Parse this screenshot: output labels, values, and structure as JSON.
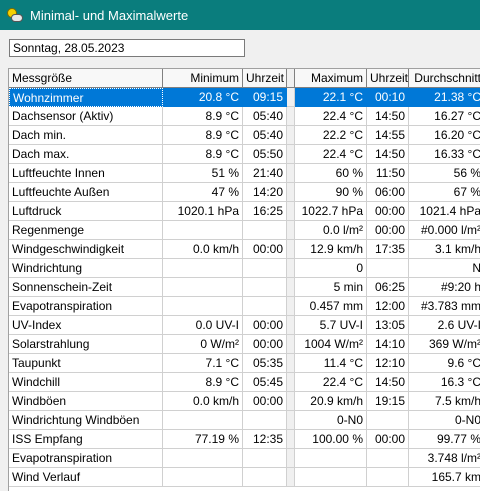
{
  "window": {
    "title": "Minimal- und Maximalwerte"
  },
  "date": "Sonntag, 28.05.2023",
  "table": {
    "headers": [
      "Messgröße",
      "Minimum",
      "Uhrzeit",
      "Maximum",
      "Uhrzeit",
      "Durchschnitt"
    ],
    "rows": [
      [
        "Wohnzimmer",
        "20.8 °C",
        "09:15",
        "22.1 °C",
        "00:10",
        "21.38 °C"
      ],
      [
        "Dachsensor (Aktiv)",
        "8.9 °C",
        "05:40",
        "22.4 °C",
        "14:50",
        "16.27 °C"
      ],
      [
        "Dach min.",
        "8.9 °C",
        "05:40",
        "22.2 °C",
        "14:55",
        "16.20 °C"
      ],
      [
        "Dach max.",
        "8.9 °C",
        "05:50",
        "22.4 °C",
        "14:50",
        "16.33 °C"
      ],
      [
        "Luftfeuchte Innen",
        "51 %",
        "21:40",
        "60 %",
        "11:50",
        "56 %"
      ],
      [
        "Luftfeuchte Außen",
        "47 %",
        "14:20",
        "90 %",
        "06:00",
        "67 %"
      ],
      [
        "Luftdruck",
        "1020.1 hPa",
        "16:25",
        "1022.7 hPa",
        "00:00",
        "1021.4 hPa"
      ],
      [
        "Regenmenge",
        "",
        "",
        "0.0 l/m²",
        "00:00",
        "#0.000 l/m²"
      ],
      [
        "Windgeschwindigkeit",
        "0.0 km/h",
        "00:00",
        "12.9 km/h",
        "17:35",
        "3.1 km/h"
      ],
      [
        "Windrichtung",
        "",
        "",
        "0",
        "",
        "N"
      ],
      [
        "Sonnenschein-Zeit",
        "",
        "",
        "5 min",
        "06:25",
        "#9:20 h"
      ],
      [
        "Evapotranspiration",
        "",
        "",
        "0.457 mm",
        "12:00",
        "#3.783 mm"
      ],
      [
        "UV-Index",
        "0.0 UV-I",
        "00:00",
        "5.7 UV-I",
        "13:05",
        "2.6 UV-I"
      ],
      [
        "Solarstrahlung",
        "0 W/m²",
        "00:00",
        "1004 W/m²",
        "14:10",
        "369 W/m²"
      ],
      [
        "Taupunkt",
        "7.1 °C",
        "05:35",
        "11.4 °C",
        "12:10",
        "9.6 °C"
      ],
      [
        "Windchill",
        "8.9 °C",
        "05:45",
        "22.4 °C",
        "14:50",
        "16.3 °C"
      ],
      [
        "Windböen",
        "0.0 km/h",
        "00:00",
        "20.9 km/h",
        "19:15",
        "7.5 km/h"
      ],
      [
        "Windrichtung Windböen",
        "",
        "",
        "0-N0",
        "",
        "0-N0"
      ],
      [
        "ISS Empfang",
        "77.19 %",
        "12:35",
        "100.00 %",
        "00:00",
        "99.77 %"
      ],
      [
        "Evapotranspiration",
        "",
        "",
        "",
        "",
        "3.748 l/m²"
      ],
      [
        "Wind Verlauf",
        "",
        "",
        "",
        "",
        "165.7 km"
      ]
    ],
    "selected_row": 0
  },
  "colors": {
    "titlebar": "#0a7d7d",
    "selection": "#0078d7"
  }
}
